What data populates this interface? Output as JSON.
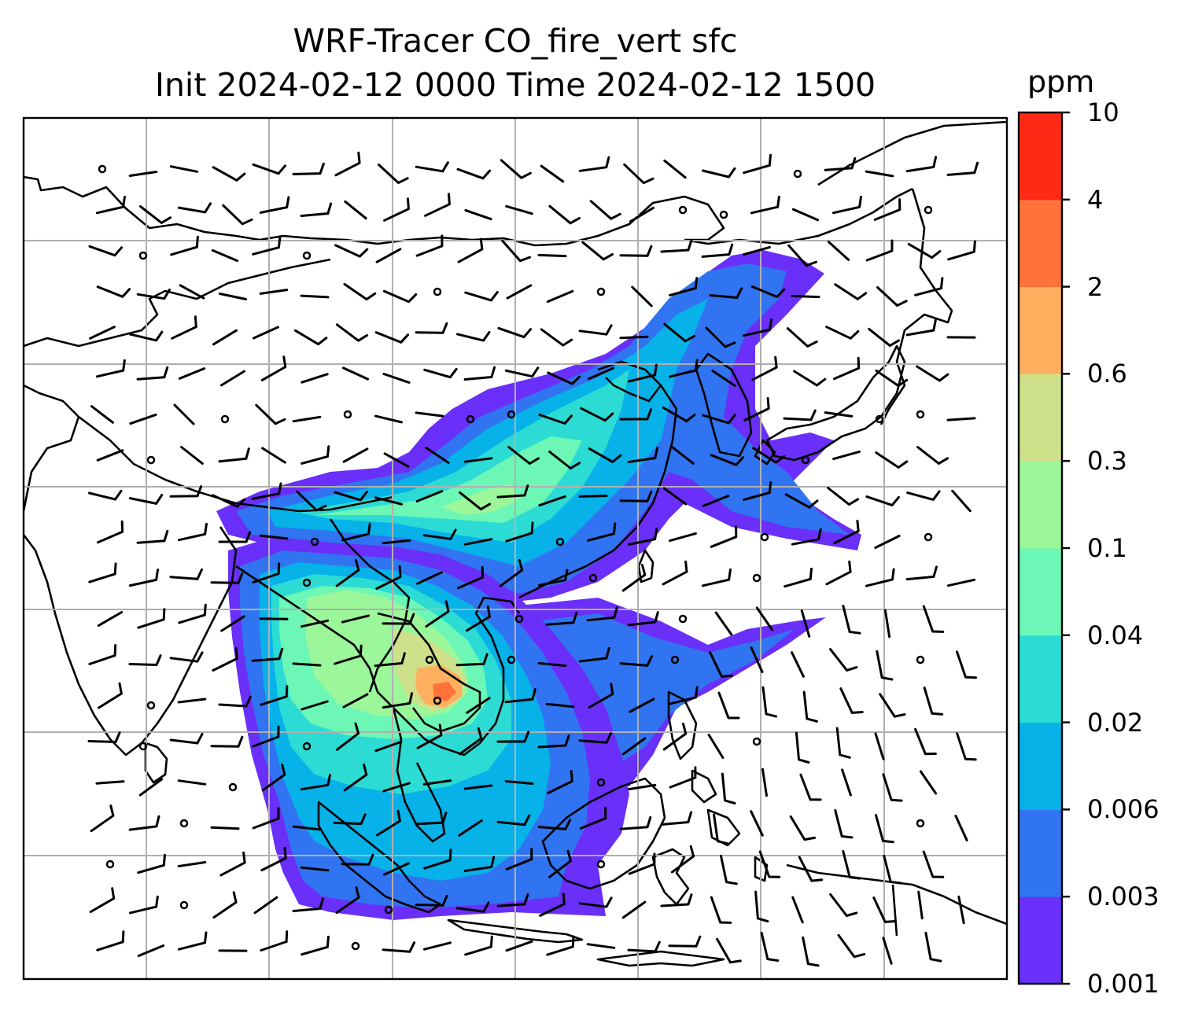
{
  "title": {
    "line1": "WRF-Tracer CO_fire_vert sfc",
    "line2": "Init 2024-02-12 0000 Time 2024-02-12 1500"
  },
  "colorbar": {
    "title": "ppm",
    "levels": [
      "0.001",
      "0.003",
      "0.006",
      "0.02",
      "0.04",
      "0.1",
      "0.3",
      "0.6",
      "2",
      "4",
      "10"
    ],
    "colors": [
      "#6a2ff8",
      "#3174f1",
      "#07b2e9",
      "#2cdcd4",
      "#6cf7b6",
      "#9cf69a",
      "#cfe08b",
      "#ffb05e",
      "#ff733b",
      "#ff2a16"
    ]
  },
  "map": {
    "field": "CO_fire_vert",
    "gridlines": true,
    "colors": {
      "background": "#ffffff",
      "coastline": "#000000",
      "gridline": "#b0b0b0"
    }
  }
}
